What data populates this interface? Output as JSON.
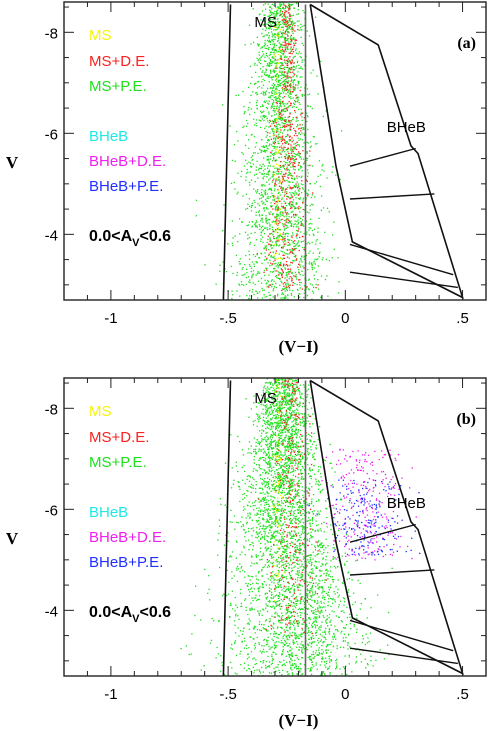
{
  "chart_data": [
    {
      "type": "scatter",
      "panel_label": "(a)",
      "xlabel": "(V−I)",
      "ylabel": "V",
      "xlim": [
        -1.2,
        0.6
      ],
      "ylim": [
        -2.7,
        -8.6
      ],
      "y_inverted": true,
      "x_ticks": [
        {
          "v": -1,
          "label": "-1"
        },
        {
          "v": -0.5,
          "label": "-.5"
        },
        {
          "v": 0,
          "label": "0"
        },
        {
          "v": 0.5,
          "label": ".5"
        }
      ],
      "y_ticks": [
        {
          "v": -8,
          "label": "-8"
        },
        {
          "v": -6,
          "label": "-6"
        },
        {
          "v": -4,
          "label": "-4"
        }
      ],
      "region_labels": [
        "MS",
        "BHeB"
      ],
      "annotation": {
        "prefix": "0.0<A",
        "sub": "V",
        "suffix": "<0.6"
      },
      "legend": [
        {
          "label": "MS",
          "color": "#f5f500"
        },
        {
          "label": "MS+D.E.",
          "color": "#ff2020"
        },
        {
          "label": "MS+P.E.",
          "color": "#20e020"
        },
        {
          "label": "BHeB",
          "color": "#20e8e8"
        },
        {
          "label": "BHeB+D.E.",
          "color": "#ee20ee"
        },
        {
          "label": "BHeB+P.E.",
          "color": "#2030ff"
        }
      ],
      "boundaries": {
        "ms_left": [
          [
            -0.52,
            -2.7
          ],
          [
            -0.49,
            -8.55
          ]
        ],
        "ms_red_edge": [
          [
            -0.17,
            -2.7
          ],
          [
            -0.17,
            -8.55
          ]
        ],
        "bheb_outline": [
          [
            -0.15,
            -8.55
          ],
          [
            0.14,
            -7.75
          ],
          [
            0.28,
            -5.75
          ],
          [
            0.31,
            -5.6
          ],
          [
            0.5,
            -2.75
          ],
          [
            0.03,
            -3.85
          ],
          [
            -0.04,
            -5.35
          ],
          [
            -0.15,
            -8.55
          ]
        ],
        "bheb_lines": [
          [
            [
              0.02,
              -5.35
            ],
            [
              0.3,
              -5.7
            ]
          ],
          [
            [
              0.02,
              -4.7
            ],
            [
              0.38,
              -4.8
            ]
          ],
          [
            [
              0.02,
              -3.8
            ],
            [
              0.46,
              -3.2
            ]
          ],
          [
            [
              0.02,
              -3.25
            ],
            [
              0.48,
              -2.95
            ]
          ]
        ]
      },
      "scatter_regions": [
        {
          "name": "MS+P.E.",
          "color": "#20e020",
          "n": 2400,
          "xc": -0.28,
          "xw": 0.18,
          "ymin": -8.6,
          "ymax": -2.7,
          "skew": "bright_narrow"
        },
        {
          "name": "MS+D.E.",
          "color": "#ff2020",
          "n": 500,
          "xc": -0.25,
          "xw": 0.08,
          "ymin": -8.6,
          "ymax": -2.9,
          "skew": "bright_narrow"
        },
        {
          "name": "MS",
          "color": "#f5f500",
          "n": 80,
          "xc": -0.29,
          "xw": 0.02,
          "ymin": -8.6,
          "ymax": -3.5,
          "skew": "none"
        }
      ]
    },
    {
      "type": "scatter",
      "panel_label": "(b)",
      "xlabel": "(V−I)",
      "ylabel": "V",
      "xlim": [
        -1.2,
        0.6
      ],
      "ylim": [
        -2.7,
        -8.6
      ],
      "y_inverted": true,
      "x_ticks": [
        {
          "v": -1,
          "label": "-1"
        },
        {
          "v": -0.5,
          "label": "-.5"
        },
        {
          "v": 0,
          "label": "0"
        },
        {
          "v": 0.5,
          "label": ".5"
        }
      ],
      "y_ticks": [
        {
          "v": -8,
          "label": "-8"
        },
        {
          "v": -6,
          "label": "-6"
        },
        {
          "v": -4,
          "label": "-4"
        }
      ],
      "region_labels": [
        "MS",
        "BHeB"
      ],
      "annotation": {
        "prefix": "0.0<A",
        "sub": "V",
        "suffix": "<0.6"
      },
      "legend": [
        {
          "label": "MS",
          "color": "#f5f500"
        },
        {
          "label": "MS+D.E.",
          "color": "#ff2020"
        },
        {
          "label": "MS+P.E.",
          "color": "#20e020"
        },
        {
          "label": "BHeB",
          "color": "#20e8e8"
        },
        {
          "label": "BHeB+D.E.",
          "color": "#ee20ee"
        },
        {
          "label": "BHeB+P.E.",
          "color": "#2030ff"
        }
      ],
      "boundaries": {
        "ms_left": [
          [
            -0.52,
            -2.7
          ],
          [
            -0.49,
            -8.55
          ]
        ],
        "ms_red_edge": [
          [
            -0.17,
            -2.7
          ],
          [
            -0.17,
            -8.55
          ]
        ],
        "bheb_outline": [
          [
            -0.15,
            -8.55
          ],
          [
            0.14,
            -7.75
          ],
          [
            0.28,
            -5.75
          ],
          [
            0.31,
            -5.6
          ],
          [
            0.5,
            -2.75
          ],
          [
            0.03,
            -3.85
          ],
          [
            -0.04,
            -5.35
          ],
          [
            -0.15,
            -8.55
          ]
        ],
        "bheb_lines": [
          [
            [
              0.02,
              -5.35
            ],
            [
              0.3,
              -5.7
            ]
          ],
          [
            [
              0.02,
              -4.7
            ],
            [
              0.38,
              -4.8
            ]
          ],
          [
            [
              0.02,
              -3.8
            ],
            [
              0.46,
              -3.2
            ]
          ],
          [
            [
              0.02,
              -3.25
            ],
            [
              0.48,
              -2.95
            ]
          ]
        ]
      },
      "scatter_regions": [
        {
          "name": "MS+P.E.",
          "color": "#20e020",
          "n": 3800,
          "xc": -0.27,
          "xw": 0.24,
          "ymin": -8.6,
          "ymax": -2.7,
          "skew": "faint_wide"
        },
        {
          "name": "MS+D.E.",
          "color": "#ff2020",
          "n": 260,
          "xc": -0.23,
          "xw": 0.1,
          "ymin": -8.6,
          "ymax": -3.5,
          "skew": "bright_narrow"
        },
        {
          "name": "MS",
          "color": "#f5f500",
          "n": 70,
          "xc": -0.29,
          "xw": 0.02,
          "ymin": -8.6,
          "ymax": -4.0,
          "skew": "none"
        },
        {
          "name": "BHeB+D.E.",
          "color": "#ee20ee",
          "n": 260,
          "xc": 0.08,
          "xw": 0.17,
          "ymin": -7.2,
          "ymax": -5.0,
          "skew": "none"
        },
        {
          "name": "BHeB+P.E.",
          "color": "#2030ff",
          "n": 200,
          "xc": 0.08,
          "xw": 0.17,
          "ymin": -6.6,
          "ymax": -5.1,
          "skew": "none"
        }
      ]
    }
  ]
}
